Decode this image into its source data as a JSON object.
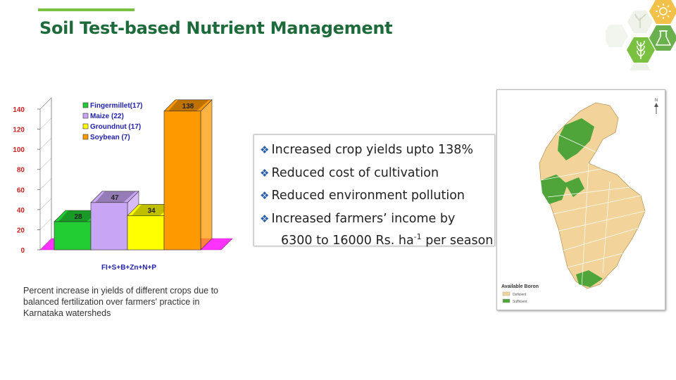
{
  "slide": {
    "title": "Soil Test-based Nutrient Management"
  },
  "chart_data": {
    "type": "bar",
    "categories": [
      "Fingermillet(17)",
      "Maize (22)",
      "Groundnut (17)",
      "Soybean (7)"
    ],
    "values": [
      28,
      47,
      34,
      138
    ],
    "data_labels": [
      "28",
      "47",
      "34",
      "138"
    ],
    "colors": [
      "#22cc33",
      "#c9a6f5",
      "#ffff00",
      "#ff9900"
    ],
    "legend": [
      "Fingermillet(17)",
      "Maize (22)",
      "Groundnut (17)",
      "Soybean (7)"
    ],
    "legend_position": "top-left",
    "xlabel": "FI+S+B+Zn+N+P",
    "ylabel": "",
    "ylim": [
      0,
      140
    ],
    "yticks": [
      "0",
      "20",
      "40",
      "60",
      "80",
      "100",
      "120",
      "140"
    ],
    "style": "3d-bar",
    "grid": false
  },
  "caption": "Percent increase in yields of different crops due to balanced fertilization over farmers' practice in Karnataka watersheds",
  "bullets": {
    "marker": "❖",
    "items": [
      "Increased crop yields upto 138%",
      "Reduced cost of cultivation",
      "Reduced environment pollution",
      "Increased farmers’ income by"
    ],
    "last_line_prefix": "6300 to 16000 Rs. ha",
    "last_line_sup": "-1",
    "last_line_suffix": " per season"
  },
  "map": {
    "legend_title": "Available Boron",
    "legend_items": [
      "Deficient",
      "Sufficient"
    ],
    "legend_colors": [
      "#f2d49a",
      "#4fa43a"
    ],
    "north_label": "N"
  },
  "decoration": {
    "icons": [
      "sun-icon",
      "plant-icon",
      "leaf-icon",
      "flask-icon"
    ]
  }
}
